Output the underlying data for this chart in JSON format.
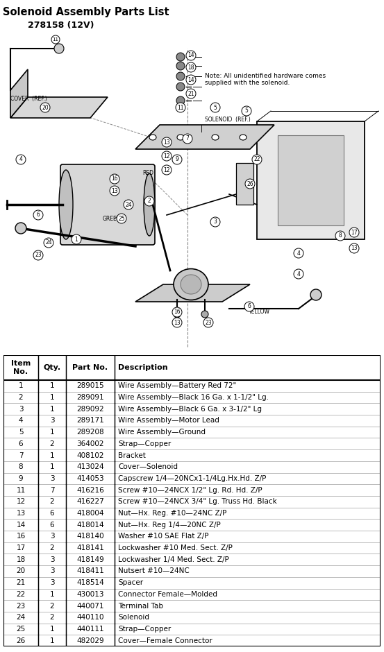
{
  "title": "Solenoid Assembly Parts List",
  "subtitle": "278158 (12V)",
  "note": "Note: All unidentified hardware comes\nsupplied with the solenoid.",
  "rows": [
    [
      "1",
      "1",
      "289015",
      "Wire Assembly—Battery Red 72\""
    ],
    [
      "2",
      "1",
      "289091",
      "Wire Assembly—Black 16 Ga. x 1-1/2\" Lg."
    ],
    [
      "3",
      "1",
      "289092",
      "Wire Assembly—Black 6 Ga. x 3-1/2\" Lg"
    ],
    [
      "4",
      "3",
      "289171",
      "Wire Assembly—Motor Lead"
    ],
    [
      "5",
      "1",
      "289208",
      "Wire Assembly—Ground"
    ],
    [
      "6",
      "2",
      "364002",
      "Strap—Copper"
    ],
    [
      "7",
      "1",
      "408102",
      "Bracket"
    ],
    [
      "8",
      "1",
      "413024",
      "Cover—Solenoid"
    ],
    [
      "9",
      "3",
      "414053",
      "Capscrew 1/4—20NCx1-1/4Lg.Hx.Hd. Z/P"
    ],
    [
      "11",
      "7",
      "416216",
      "Screw #10—24NCX 1/2\" Lg. Rd. Hd. Z/P"
    ],
    [
      "12",
      "2",
      "416227",
      "Screw #10—24NCX 3/4\" Lg. Truss Hd. Black"
    ],
    [
      "13",
      "6",
      "418004",
      "Nut—Hx. Reg. #10—24NC Z/P"
    ],
    [
      "14",
      "6",
      "418014",
      "Nut—Hx. Reg 1/4—20NC Z/P"
    ],
    [
      "16",
      "3",
      "418140",
      "Washer #10 SAE Flat Z/P"
    ],
    [
      "17",
      "2",
      "418141",
      "Lockwasher #10 Med. Sect. Z/P"
    ],
    [
      "18",
      "3",
      "418149",
      "Lockwasher 1/4 Med. Sect. Z/P"
    ],
    [
      "20",
      "3",
      "418411",
      "Nutsert #10—24NC"
    ],
    [
      "21",
      "3",
      "418514",
      "Spacer"
    ],
    [
      "22",
      "1",
      "430013",
      "Connector Female—Molded"
    ],
    [
      "23",
      "2",
      "440071",
      "Terminal Tab"
    ],
    [
      "24",
      "2",
      "440110",
      "Solenoid"
    ],
    [
      "25",
      "1",
      "440111",
      "Strap—Copper"
    ],
    [
      "26",
      "1",
      "482029",
      "Cover—Female Connector"
    ]
  ],
  "fig_width": 5.53,
  "fig_height": 9.4,
  "bg_color": "#ffffff"
}
